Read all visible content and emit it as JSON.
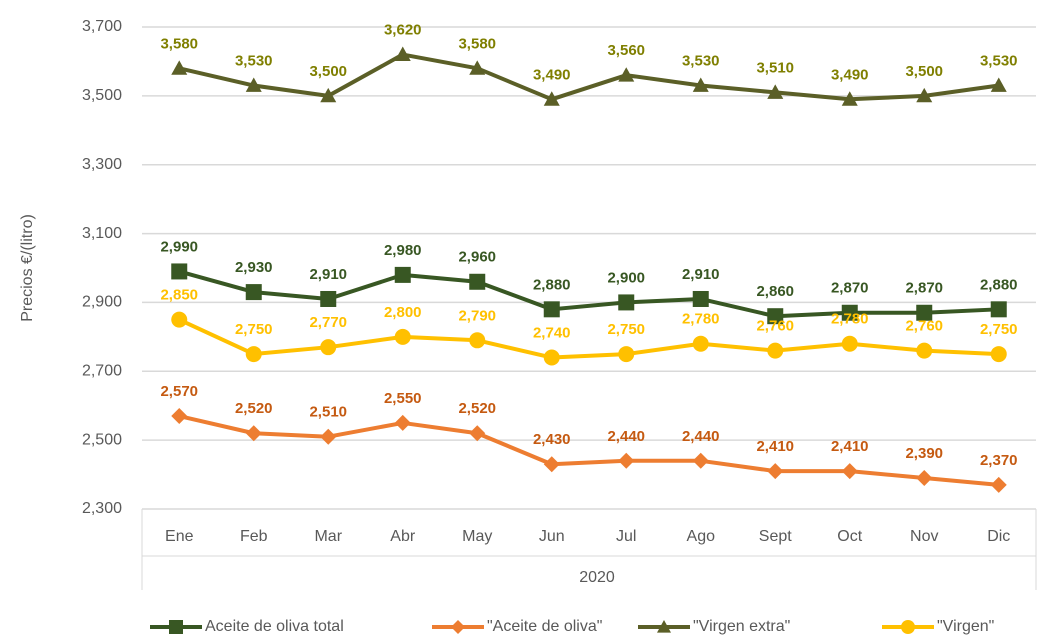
{
  "chart_data": {
    "type": "line",
    "y_label": "Precios  €/(litro)",
    "x_group_label": "2020",
    "categories": [
      "Ene",
      "Feb",
      "Mar",
      "Abr",
      "May",
      "Jun",
      "Jul",
      "Ago",
      "Sept",
      "Oct",
      "Nov",
      "Dic"
    ],
    "ylim": [
      2300,
      3700
    ],
    "yticks": [
      {
        "value": 2300,
        "label": "2,300"
      },
      {
        "value": 2500,
        "label": "2,500"
      },
      {
        "value": 2700,
        "label": "2,700"
      },
      {
        "value": 2900,
        "label": "2,900"
      },
      {
        "value": 3100,
        "label": "3,100"
      },
      {
        "value": 3300,
        "label": "3,300"
      },
      {
        "value": 3500,
        "label": "3,500"
      },
      {
        "value": 3700,
        "label": "3,700"
      }
    ],
    "grid": true,
    "legend": "bottom",
    "series": [
      {
        "name": "Aceite de oliva total",
        "color": "#385723",
        "marker": "square",
        "values": [
          2990,
          2930,
          2910,
          2980,
          2960,
          2880,
          2900,
          2910,
          2860,
          2870,
          2870,
          2880
        ],
        "value_labels": [
          "2,990",
          "2,930",
          "2,910",
          "2,980",
          "2,960",
          "2,880",
          "2,900",
          "2,910",
          "2,860",
          "2,870",
          "2,870",
          "2,880"
        ]
      },
      {
        "name": "\"Aceite de oliva\"",
        "color": "#ed7d31",
        "label_color": "#c55a11",
        "marker": "diamond",
        "values": [
          2570,
          2520,
          2510,
          2550,
          2520,
          2430,
          2440,
          2440,
          2410,
          2410,
          2390,
          2370
        ],
        "value_labels": [
          "2,570",
          "2,520",
          "2,510",
          "2,550",
          "2,520",
          "2,430",
          "2,440",
          "2,440",
          "2,410",
          "2,410",
          "2,390",
          "2,370"
        ]
      },
      {
        "name": "\"Virgen extra\"",
        "color": "#5b5f27",
        "label_color": "#7f7f00",
        "marker": "triangle",
        "values": [
          3580,
          3530,
          3500,
          3620,
          3580,
          3490,
          3560,
          3530,
          3510,
          3490,
          3500,
          3530
        ],
        "value_labels": [
          "3,580",
          "3,530",
          "3,500",
          "3,620",
          "3,580",
          "3,490",
          "3,560",
          "3,530",
          "3,510",
          "3,490",
          "3,500",
          "3,530"
        ]
      },
      {
        "name": "\"Virgen\"",
        "color": "#ffc000",
        "marker": "circle",
        "values": [
          2850,
          2750,
          2770,
          2800,
          2790,
          2740,
          2750,
          2780,
          2760,
          2780,
          2760,
          2750
        ],
        "value_labels": [
          "2,850",
          "2,750",
          "2,770",
          "2,800",
          "2,790",
          "2,740",
          "2,750",
          "2,780",
          "2,760",
          "2,780",
          "2,760",
          "2,750"
        ]
      }
    ]
  }
}
